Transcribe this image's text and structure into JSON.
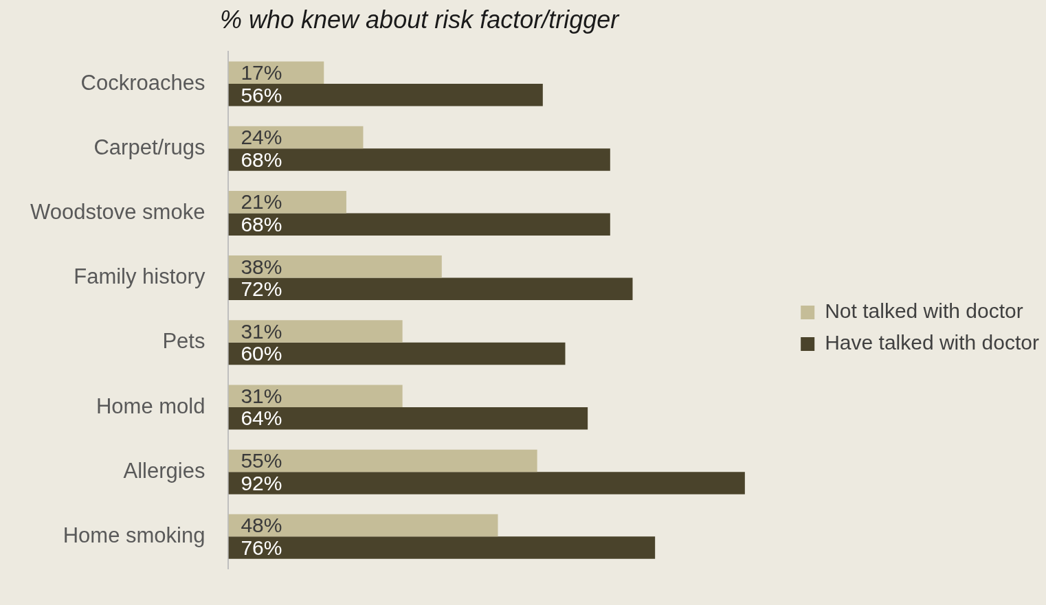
{
  "chart_data": {
    "type": "bar",
    "orientation": "horizontal",
    "title": "% who knew about risk factor/trigger",
    "categories": [
      "Cockroaches",
      "Carpet/rugs",
      "Woodstove smoke",
      "Family history",
      "Pets",
      "Home mold",
      "Allergies",
      "Home smoking"
    ],
    "series": [
      {
        "name": "Not talked with doctor",
        "color": "#c5bd98",
        "values": [
          17,
          24,
          21,
          38,
          31,
          31,
          55,
          48
        ],
        "value_labels": [
          "17%",
          "24%",
          "21%",
          "38%",
          "31%",
          "31%",
          "55%",
          "48%"
        ]
      },
      {
        "name": "Have talked with doctor",
        "color": "#4a432b",
        "values": [
          56,
          68,
          68,
          72,
          60,
          64,
          92,
          76
        ],
        "value_labels": [
          "56%",
          "68%",
          "68%",
          "72%",
          "60%",
          "64%",
          "92%",
          "76%"
        ]
      }
    ],
    "legend": "right",
    "grid": false
  }
}
